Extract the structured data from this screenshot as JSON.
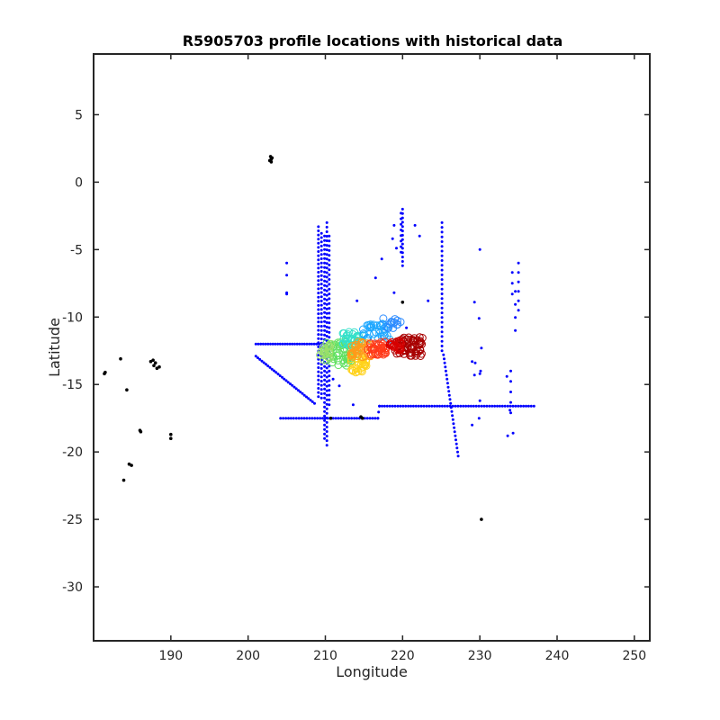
{
  "chart_data": {
    "type": "scatter",
    "title": "R5905703 profile locations with historical data",
    "xlabel": "Longitude",
    "ylabel": "Latitude",
    "xlim": [
      180,
      252
    ],
    "ylim": [
      -34,
      9.5
    ],
    "xticks": [
      190,
      200,
      210,
      220,
      230,
      240,
      250
    ],
    "yticks": [
      5,
      0,
      -5,
      -10,
      -15,
      -20,
      -25,
      -30
    ],
    "grid": false,
    "legend": "none",
    "colors": {
      "historical": "#0000ff",
      "coastline": "#000000",
      "frame": "#262626",
      "profile_colormap": "jet"
    },
    "series": [
      {
        "role": "historical",
        "marker": "dot",
        "segments": [
          {
            "from": [
              209.1,
              -3.3
            ],
            "to": [
              209.1,
              -15.9
            ],
            "n": 42
          },
          {
            "from": [
              209.5,
              -3.8
            ],
            "to": [
              209.5,
              -16.0
            ],
            "n": 40
          },
          {
            "from": [
              209.9,
              -4.0
            ],
            "to": [
              209.9,
              -19.0
            ],
            "n": 46
          },
          {
            "from": [
              210.2,
              -3.0
            ],
            "to": [
              210.2,
              -19.5
            ],
            "n": 50
          },
          {
            "from": [
              210.5,
              -4.0
            ],
            "to": [
              210.5,
              -16.5
            ],
            "n": 36
          },
          {
            "from": [
              201.0,
              -12.0
            ],
            "to": [
              209.5,
              -12.0
            ],
            "n": 28
          },
          {
            "from": [
              201.0,
              -12.9
            ],
            "to": [
              208.6,
              -16.4
            ],
            "n": 30
          },
          {
            "from": [
              204.2,
              -17.5
            ],
            "to": [
              216.8,
              -17.5
            ],
            "n": 38
          },
          {
            "from": [
              217.0,
              -16.6
            ],
            "to": [
              237.0,
              -16.6
            ],
            "n": 60
          },
          {
            "from": [
              216.8,
              -17.5
            ],
            "to": [
              217.0,
              -16.6
            ],
            "n": 3
          },
          {
            "from": [
              220.0,
              -2.0
            ],
            "to": [
              220.0,
              -6.2
            ],
            "n": 14
          },
          {
            "from": [
              219.8,
              -2.3
            ],
            "to": [
              219.8,
              -5.2
            ],
            "n": 8
          },
          {
            "from": [
              225.1,
              -3.0
            ],
            "to": [
              225.1,
              -12.5
            ],
            "n": 28
          },
          {
            "from": [
              225.3,
              -12.8
            ],
            "to": [
              227.2,
              -20.3
            ],
            "n": 26
          },
          {
            "from": [
              235.0,
              -6.0
            ],
            "to": [
              235.0,
              -9.5
            ],
            "n": 6
          },
          {
            "from": [
              234.2,
              -6.7
            ],
            "to": [
              234.2,
              -8.3
            ],
            "n": 3
          },
          {
            "from": [
              234.6,
              -8.1
            ],
            "to": [
              234.6,
              -11.0
            ],
            "n": 4
          },
          {
            "from": [
              234.0,
              -14.0
            ],
            "to": [
              234.0,
              -17.1
            ],
            "n": 5
          }
        ],
        "points": [
          [
            205.0,
            -6.0
          ],
          [
            205.0,
            -6.9
          ],
          [
            205.0,
            -8.2
          ],
          [
            205.0,
            -8.3
          ],
          [
            218.7,
            -4.2
          ],
          [
            218.9,
            -3.2
          ],
          [
            219.2,
            -4.9
          ],
          [
            221.6,
            -3.2
          ],
          [
            222.2,
            -4.0
          ],
          [
            217.3,
            -5.7
          ],
          [
            216.5,
            -7.1
          ],
          [
            214.1,
            -8.8
          ],
          [
            218.9,
            -8.2
          ],
          [
            223.3,
            -8.8
          ],
          [
            220.5,
            -10.8
          ],
          [
            211.0,
            -14.6
          ],
          [
            211.8,
            -15.1
          ],
          [
            213.6,
            -16.5
          ],
          [
            230.0,
            -5.0
          ],
          [
            229.3,
            -8.9
          ],
          [
            229.9,
            -10.1
          ],
          [
            230.2,
            -12.3
          ],
          [
            230.0,
            -14.2
          ],
          [
            230.1,
            -14.0
          ],
          [
            230.0,
            -16.2
          ],
          [
            229.0,
            -13.3
          ],
          [
            229.4,
            -13.4
          ],
          [
            229.3,
            -14.3
          ],
          [
            229.0,
            -18.0
          ],
          [
            229.9,
            -17.5
          ],
          [
            233.5,
            -14.4
          ],
          [
            233.6,
            -18.8
          ],
          [
            234.3,
            -18.6
          ],
          [
            233.9,
            -16.9
          ]
        ]
      },
      {
        "role": "coastline",
        "marker": "dot",
        "points": [
          [
            202.9,
            1.9
          ],
          [
            203.0,
            1.7
          ],
          [
            203.1,
            1.8
          ],
          [
            202.8,
            1.6
          ],
          [
            203.0,
            1.5
          ],
          [
            181.5,
            -14.1
          ],
          [
            181.4,
            -14.2
          ],
          [
            183.5,
            -13.1
          ],
          [
            187.4,
            -13.3
          ],
          [
            187.7,
            -13.2
          ],
          [
            188.0,
            -13.4
          ],
          [
            187.8,
            -13.6
          ],
          [
            188.2,
            -13.8
          ],
          [
            188.5,
            -13.7
          ],
          [
            184.3,
            -15.4
          ],
          [
            186.0,
            -18.4
          ],
          [
            186.1,
            -18.5
          ],
          [
            184.6,
            -20.9
          ],
          [
            184.9,
            -21.0
          ],
          [
            190.0,
            -18.7
          ],
          [
            190.0,
            -19.0
          ],
          [
            183.9,
            -22.1
          ],
          [
            220.0,
            -8.9
          ],
          [
            210.7,
            -17.5
          ],
          [
            214.6,
            -17.4
          ],
          [
            214.8,
            -17.5
          ],
          [
            230.2,
            -25.0
          ]
        ]
      },
      {
        "role": "profiles",
        "marker": "circle",
        "colormap": "jet",
        "clusters": [
          {
            "center": [
              212.0,
              -12.7
            ],
            "spread": [
              2.2,
              0.9
            ],
            "n": 55,
            "color": "#60e060"
          },
          {
            "center": [
              210.2,
              -12.6
            ],
            "spread": [
              0.9,
              0.6
            ],
            "n": 18,
            "color": "#9ae06a"
          },
          {
            "center": [
              213.5,
              -11.6
            ],
            "spread": [
              1.5,
              0.5
            ],
            "n": 30,
            "color": "#33e0c9"
          },
          {
            "center": [
              216.6,
              -11.1
            ],
            "spread": [
              1.8,
              0.6
            ],
            "n": 35,
            "color": "#1fa8ff"
          },
          {
            "center": [
              218.6,
              -10.5
            ],
            "spread": [
              1.2,
              0.4
            ],
            "n": 14,
            "color": "#2e8cff"
          },
          {
            "center": [
              214.3,
              -13.5
            ],
            "spread": [
              1.0,
              0.6
            ],
            "n": 28,
            "color": "#ffd21a"
          },
          {
            "center": [
              214.7,
              -12.4
            ],
            "spread": [
              1.4,
              0.6
            ],
            "n": 32,
            "color": "#ff9a1a"
          },
          {
            "center": [
              216.7,
              -12.3
            ],
            "spread": [
              1.2,
              0.5
            ],
            "n": 38,
            "color": "#ff3a1a"
          },
          {
            "center": [
              220.8,
              -12.2
            ],
            "spread": [
              1.8,
              0.7
            ],
            "n": 60,
            "color": "#a80000"
          },
          {
            "center": [
              219.0,
              -12.1
            ],
            "spread": [
              0.8,
              0.4
            ],
            "n": 20,
            "color": "#d60000"
          }
        ]
      }
    ]
  }
}
